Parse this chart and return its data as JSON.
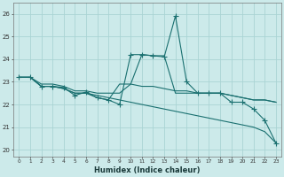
{
  "xlabel": "Humidex (Indice chaleur)",
  "background_color": "#cceaea",
  "grid_color": "#aad4d4",
  "line_color": "#1a7070",
  "x_ticks": [
    0,
    1,
    2,
    3,
    4,
    5,
    6,
    7,
    8,
    9,
    10,
    11,
    12,
    13,
    14,
    15,
    16,
    17,
    18,
    19,
    20,
    21,
    22,
    23
  ],
  "ylim": [
    19.7,
    26.5
  ],
  "xlim": [
    -0.5,
    23.5
  ],
  "yticks": [
    20,
    21,
    22,
    23,
    24,
    25,
    26
  ],
  "series": [
    [
      23.2,
      23.2,
      22.8,
      22.8,
      22.7,
      22.5,
      22.5,
      22.3,
      22.2,
      22.9,
      22.9,
      22.8,
      22.8,
      22.7,
      22.6,
      22.6,
      22.5,
      22.5,
      22.5,
      22.4,
      22.3,
      22.2,
      22.2,
      22.1
    ],
    [
      23.2,
      23.2,
      22.8,
      22.8,
      22.7,
      22.5,
      22.5,
      22.4,
      22.3,
      22.2,
      22.1,
      22.0,
      21.9,
      21.8,
      21.7,
      21.6,
      21.5,
      21.4,
      21.3,
      21.2,
      21.1,
      21.0,
      20.8,
      20.3
    ],
    [
      23.2,
      23.2,
      22.9,
      22.9,
      22.8,
      22.6,
      22.6,
      22.5,
      22.5,
      22.5,
      22.9,
      24.2,
      24.15,
      24.15,
      22.5,
      22.5,
      22.5,
      22.5,
      22.5,
      22.4,
      22.3,
      22.2,
      22.2,
      22.1
    ],
    [
      23.2,
      23.2,
      22.8,
      22.8,
      22.75,
      22.4,
      22.55,
      22.3,
      22.2,
      22.0,
      24.2,
      24.2,
      24.15,
      24.1,
      25.9,
      23.0,
      22.5,
      22.5,
      22.5,
      22.1,
      22.1,
      21.8,
      21.3,
      20.3
    ]
  ],
  "marker_series_idx": 3,
  "marker": "+",
  "marker_size": 4
}
